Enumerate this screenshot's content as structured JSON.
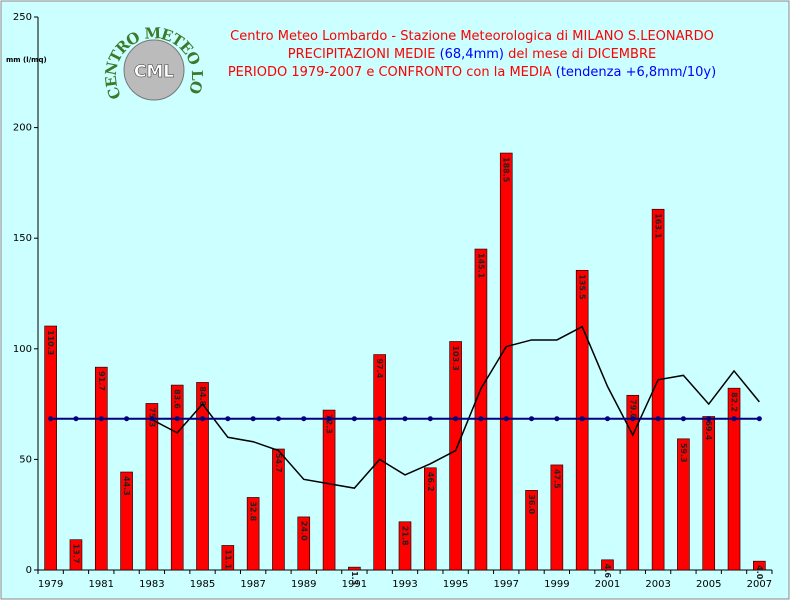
{
  "chart_data": {
    "type": "bar",
    "title_lines": [
      [
        {
          "text": "Centro Meteo Lombardo - Stazione Meteorologica di MILANO S.LEONARDO",
          "color": "#ff0000"
        }
      ],
      [
        {
          "text": "PRECIPITAZIONI MEDIE ",
          "color": "#ff0000"
        },
        {
          "text": "(68,4mm)",
          "color": "#0000ff"
        },
        {
          "text": " del mese di DICEMBRE",
          "color": "#ff0000"
        }
      ],
      [
        {
          "text": "PERIODO 1979-2007 e CONFRONTO con la MEDIA ",
          "color": "#ff0000"
        },
        {
          "text": "(tendenza +6,8mm/10y)",
          "color": "#0000ff"
        }
      ]
    ],
    "logo": {
      "ring_text": "CENTRO METEO LOMBARDO",
      "center_text": "CML"
    },
    "y_label": "mm (l/mq)",
    "categories": [
      "1979",
      null,
      "1981",
      null,
      "1983",
      null,
      "1985",
      null,
      "1987",
      null,
      "1989",
      null,
      "1991",
      null,
      "1993",
      null,
      "1995",
      null,
      "1997",
      null,
      "1999",
      null,
      "2001",
      null,
      "2003",
      null,
      "2005",
      null,
      "2007"
    ],
    "series": [
      {
        "kind": "bar",
        "color": "#ff0000",
        "values": [
          110.3,
          13.7,
          91.7,
          44.3,
          75.3,
          83.6,
          84.8,
          11.1,
          32.8,
          54.7,
          24.0,
          72.3,
          1.3,
          97.4,
          21.8,
          46.2,
          103.3,
          145.1,
          188.5,
          36.0,
          47.5,
          135.5,
          4.6,
          79.0,
          163.1,
          59.3,
          69.4,
          82.2,
          4.0
        ],
        "value_labels": [
          "110.3",
          "13.7",
          "91.7",
          "44.3",
          "75.3",
          "83.6",
          "84.8",
          "11.1",
          "32.8",
          "54.7",
          "24.0",
          "72.3",
          "1.3",
          "97.4",
          "21.8",
          "46.2",
          "103.3",
          "145.1",
          "188.5",
          "36.0",
          "47.5",
          "135.5",
          "4.6",
          "79.0",
          "163.1",
          "59.3",
          "69.4",
          "82.2",
          "4.0"
        ]
      },
      {
        "kind": "line",
        "color": "#000000",
        "values": [
          null,
          null,
          null,
          null,
          68,
          62,
          75,
          60,
          58,
          54,
          41,
          39,
          37,
          50,
          43,
          48,
          54,
          82,
          101,
          104,
          104,
          110,
          83,
          61,
          86,
          88,
          75,
          90,
          76
        ]
      },
      {
        "kind": "line",
        "color": "#000080",
        "markers": true,
        "values": [
          68.4,
          68.4,
          68.4,
          68.4,
          68.4,
          68.4,
          68.4,
          68.4,
          68.4,
          68.4,
          68.4,
          68.4,
          68.4,
          68.4,
          68.4,
          68.4,
          68.4,
          68.4,
          68.4,
          68.4,
          68.4,
          68.4,
          68.4,
          68.4,
          68.4,
          68.4,
          68.4,
          68.4,
          68.4
        ]
      }
    ],
    "ylim": [
      0,
      250
    ],
    "yticks": [
      0,
      50,
      100,
      150,
      200,
      250
    ],
    "background": "#ccffff"
  }
}
